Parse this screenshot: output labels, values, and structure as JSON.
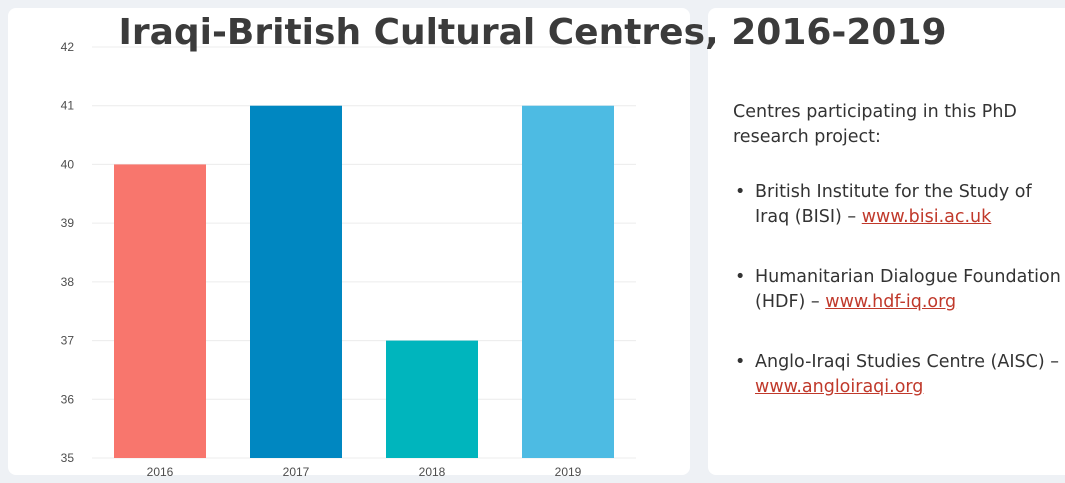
{
  "title": "Iraqi-British Cultural Centres, 2016-2019",
  "chart_data": {
    "type": "bar",
    "title": "Iraqi-British Cultural Centres, 2016-2019",
    "categories": [
      "2016",
      "2017",
      "2018",
      "2019"
    ],
    "values": [
      40,
      41,
      37,
      41
    ],
    "colors": [
      "#f8766d",
      "#0087c1",
      "#00b5bd",
      "#4dbbe3"
    ],
    "ylim": [
      35,
      42
    ],
    "yticks": [
      35,
      36,
      37,
      38,
      39,
      40,
      41,
      42
    ],
    "grid": true,
    "xlabel": "",
    "ylabel": ""
  },
  "info": {
    "intro": "Centres participating in this PhD research project:",
    "centres": [
      {
        "bullet": "•",
        "name": "British Institute for the Study of Iraq (BISI) –",
        "link": "www.bisi.ac.uk"
      },
      {
        "bullet": "•",
        "name": "Humanitarian Dialogue Foundation (HDF) –",
        "link": "www.hdf-iq.org"
      },
      {
        "bullet": "•",
        "name": "Anglo-Iraqi Studies Centre (AISC) –",
        "link": "www.angloiraqi.org"
      }
    ],
    "link_color": "#c0392b"
  }
}
